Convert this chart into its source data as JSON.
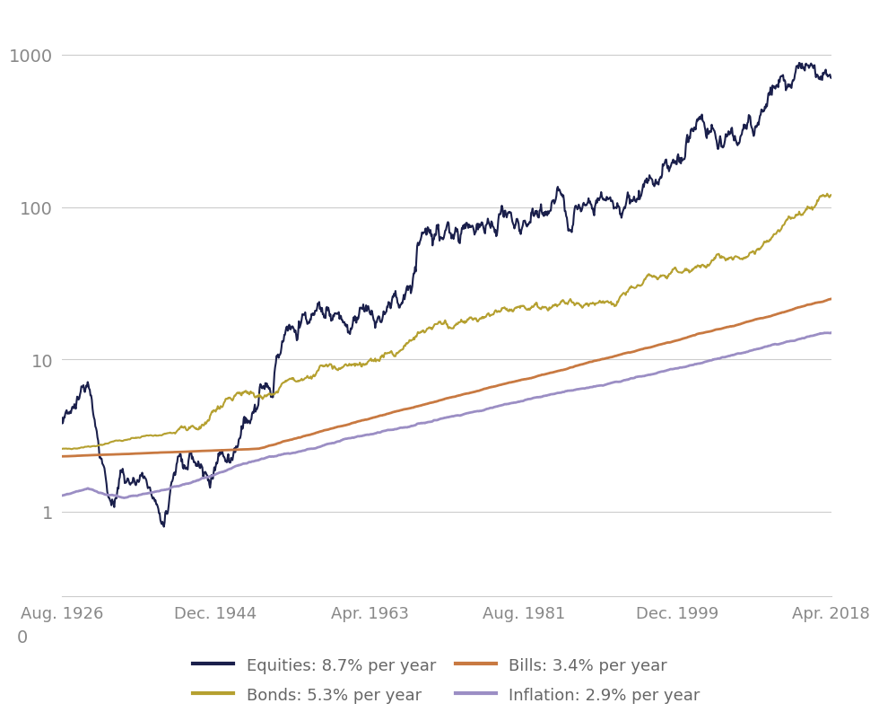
{
  "title": "",
  "series": [
    {
      "label": "Equities: 8.7% per year",
      "color": "#1a1f4b",
      "linewidth": 1.5
    },
    {
      "label": "Bonds: 5.3% per year",
      "color": "#b5a030",
      "linewidth": 1.5
    },
    {
      "label": "Bills: 3.4% per year",
      "color": "#c87941",
      "linewidth": 2.0
    },
    {
      "label": "Inflation: 2.9% per year",
      "color": "#9b8ec4",
      "linewidth": 2.0
    }
  ],
  "xtick_dates": [
    {
      "year": 1926,
      "month": 8,
      "label": "Aug. 1926"
    },
    {
      "year": 1944,
      "month": 12,
      "label": "Dec. 1944"
    },
    {
      "year": 1963,
      "month": 4,
      "label": "Apr. 1963"
    },
    {
      "year": 1981,
      "month": 8,
      "label": "Aug. 1981"
    },
    {
      "year": 1999,
      "month": 12,
      "label": "Dec. 1999"
    },
    {
      "year": 2018,
      "month": 4,
      "label": "Apr. 2018"
    }
  ],
  "grid_color": "#cccccc",
  "background_color": "#ffffff",
  "legend_text_color": "#666666",
  "tick_color": "#888888"
}
